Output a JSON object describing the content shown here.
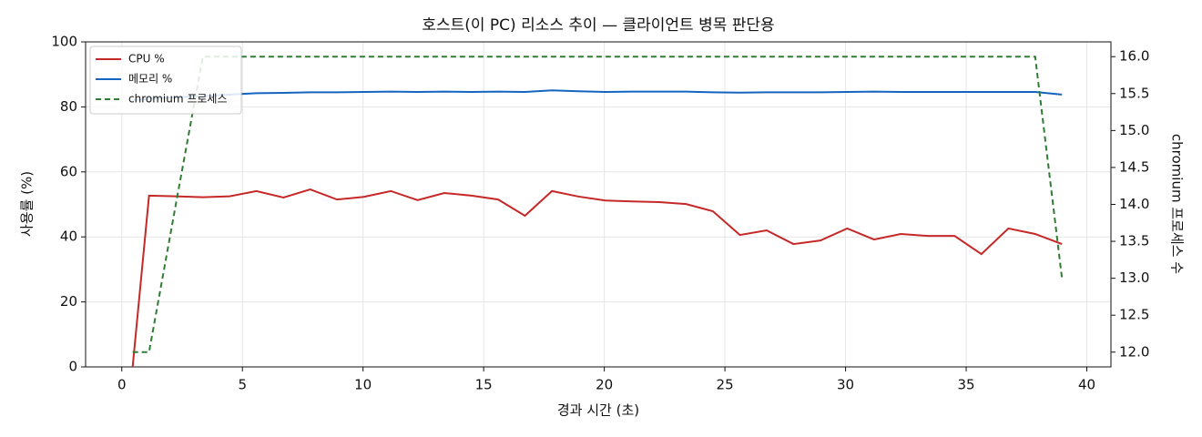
{
  "chart_data": {
    "type": "line",
    "title": "호스트(이 PC) 리소스 추이 — 클라이언트 병목 판단용",
    "xlabel": "경과 시간 (초)",
    "ylabel": "사용률 (%)",
    "y2label": "chromium 프로세스 수",
    "x": [
      0.45,
      1.13,
      2.24,
      3.36,
      4.47,
      5.58,
      6.7,
      7.81,
      8.92,
      10.03,
      11.15,
      12.26,
      13.37,
      14.49,
      15.6,
      16.71,
      17.83,
      18.94,
      20.05,
      21.16,
      22.28,
      23.39,
      24.5,
      25.62,
      26.73,
      27.84,
      28.96,
      30.07,
      31.18,
      32.29,
      33.41,
      34.52,
      35.63,
      36.75,
      37.86,
      38.97
    ],
    "series": [
      {
        "name": "CPU %",
        "color": "#c62828",
        "values": [
          0,
          52.7,
          52.5,
          52.2,
          52.5,
          54.1,
          52.1,
          54.6,
          51.5,
          52.3,
          54.1,
          51.3,
          53.5,
          52.7,
          51.5,
          46.5,
          54.1,
          52.4,
          51.2,
          50.9,
          50.7,
          50.1,
          47.9,
          40.6,
          42.0,
          37.8,
          38.9,
          42.6,
          39.2,
          40.9,
          40.3,
          40.3,
          34.7,
          42.6,
          40.9,
          37.8
        ]
      },
      {
        "name": "메모리 %",
        "color": "#1565c0",
        "values": [
          82.0,
          82.5,
          83.0,
          83.3,
          83.8,
          84.2,
          84.3,
          84.5,
          84.5,
          84.6,
          84.7,
          84.6,
          84.7,
          84.6,
          84.7,
          84.6,
          85.1,
          84.8,
          84.6,
          84.7,
          84.7,
          84.7,
          84.5,
          84.4,
          84.5,
          84.5,
          84.5,
          84.6,
          84.7,
          84.6,
          84.6,
          84.6,
          84.6,
          84.6,
          84.6,
          83.8
        ]
      },
      {
        "name": "chromium 프로세스",
        "color": "#2e7d32",
        "dashed": true,
        "axis": "y2",
        "values": [
          12,
          12,
          14,
          16,
          16,
          16,
          16,
          16,
          16,
          16,
          16,
          16,
          16,
          16,
          16,
          16,
          16,
          16,
          16,
          16,
          16,
          16,
          16,
          16,
          16,
          16,
          16,
          16,
          16,
          16,
          16,
          16,
          16,
          16,
          16,
          13
        ]
      }
    ],
    "xlim": [
      -1.5,
      41.0
    ],
    "xticks": [
      0,
      5,
      10,
      15,
      20,
      25,
      30,
      35,
      40
    ],
    "ylim": [
      0,
      100
    ],
    "yticks": [
      0,
      20,
      40,
      60,
      80,
      100
    ],
    "y2lim": [
      11.8,
      16.2
    ],
    "y2ticks": [
      {
        "value": 12,
        "label": "12.0"
      },
      12.5,
      {
        "value": 13,
        "label": "13.0"
      },
      13.5,
      {
        "value": 14,
        "label": "14.0"
      },
      14.5,
      {
        "value": 15,
        "label": "15.0"
      },
      15.5,
      {
        "value": 16,
        "label": "16.0"
      }
    ],
    "grid": true,
    "legend": "upper-left"
  }
}
